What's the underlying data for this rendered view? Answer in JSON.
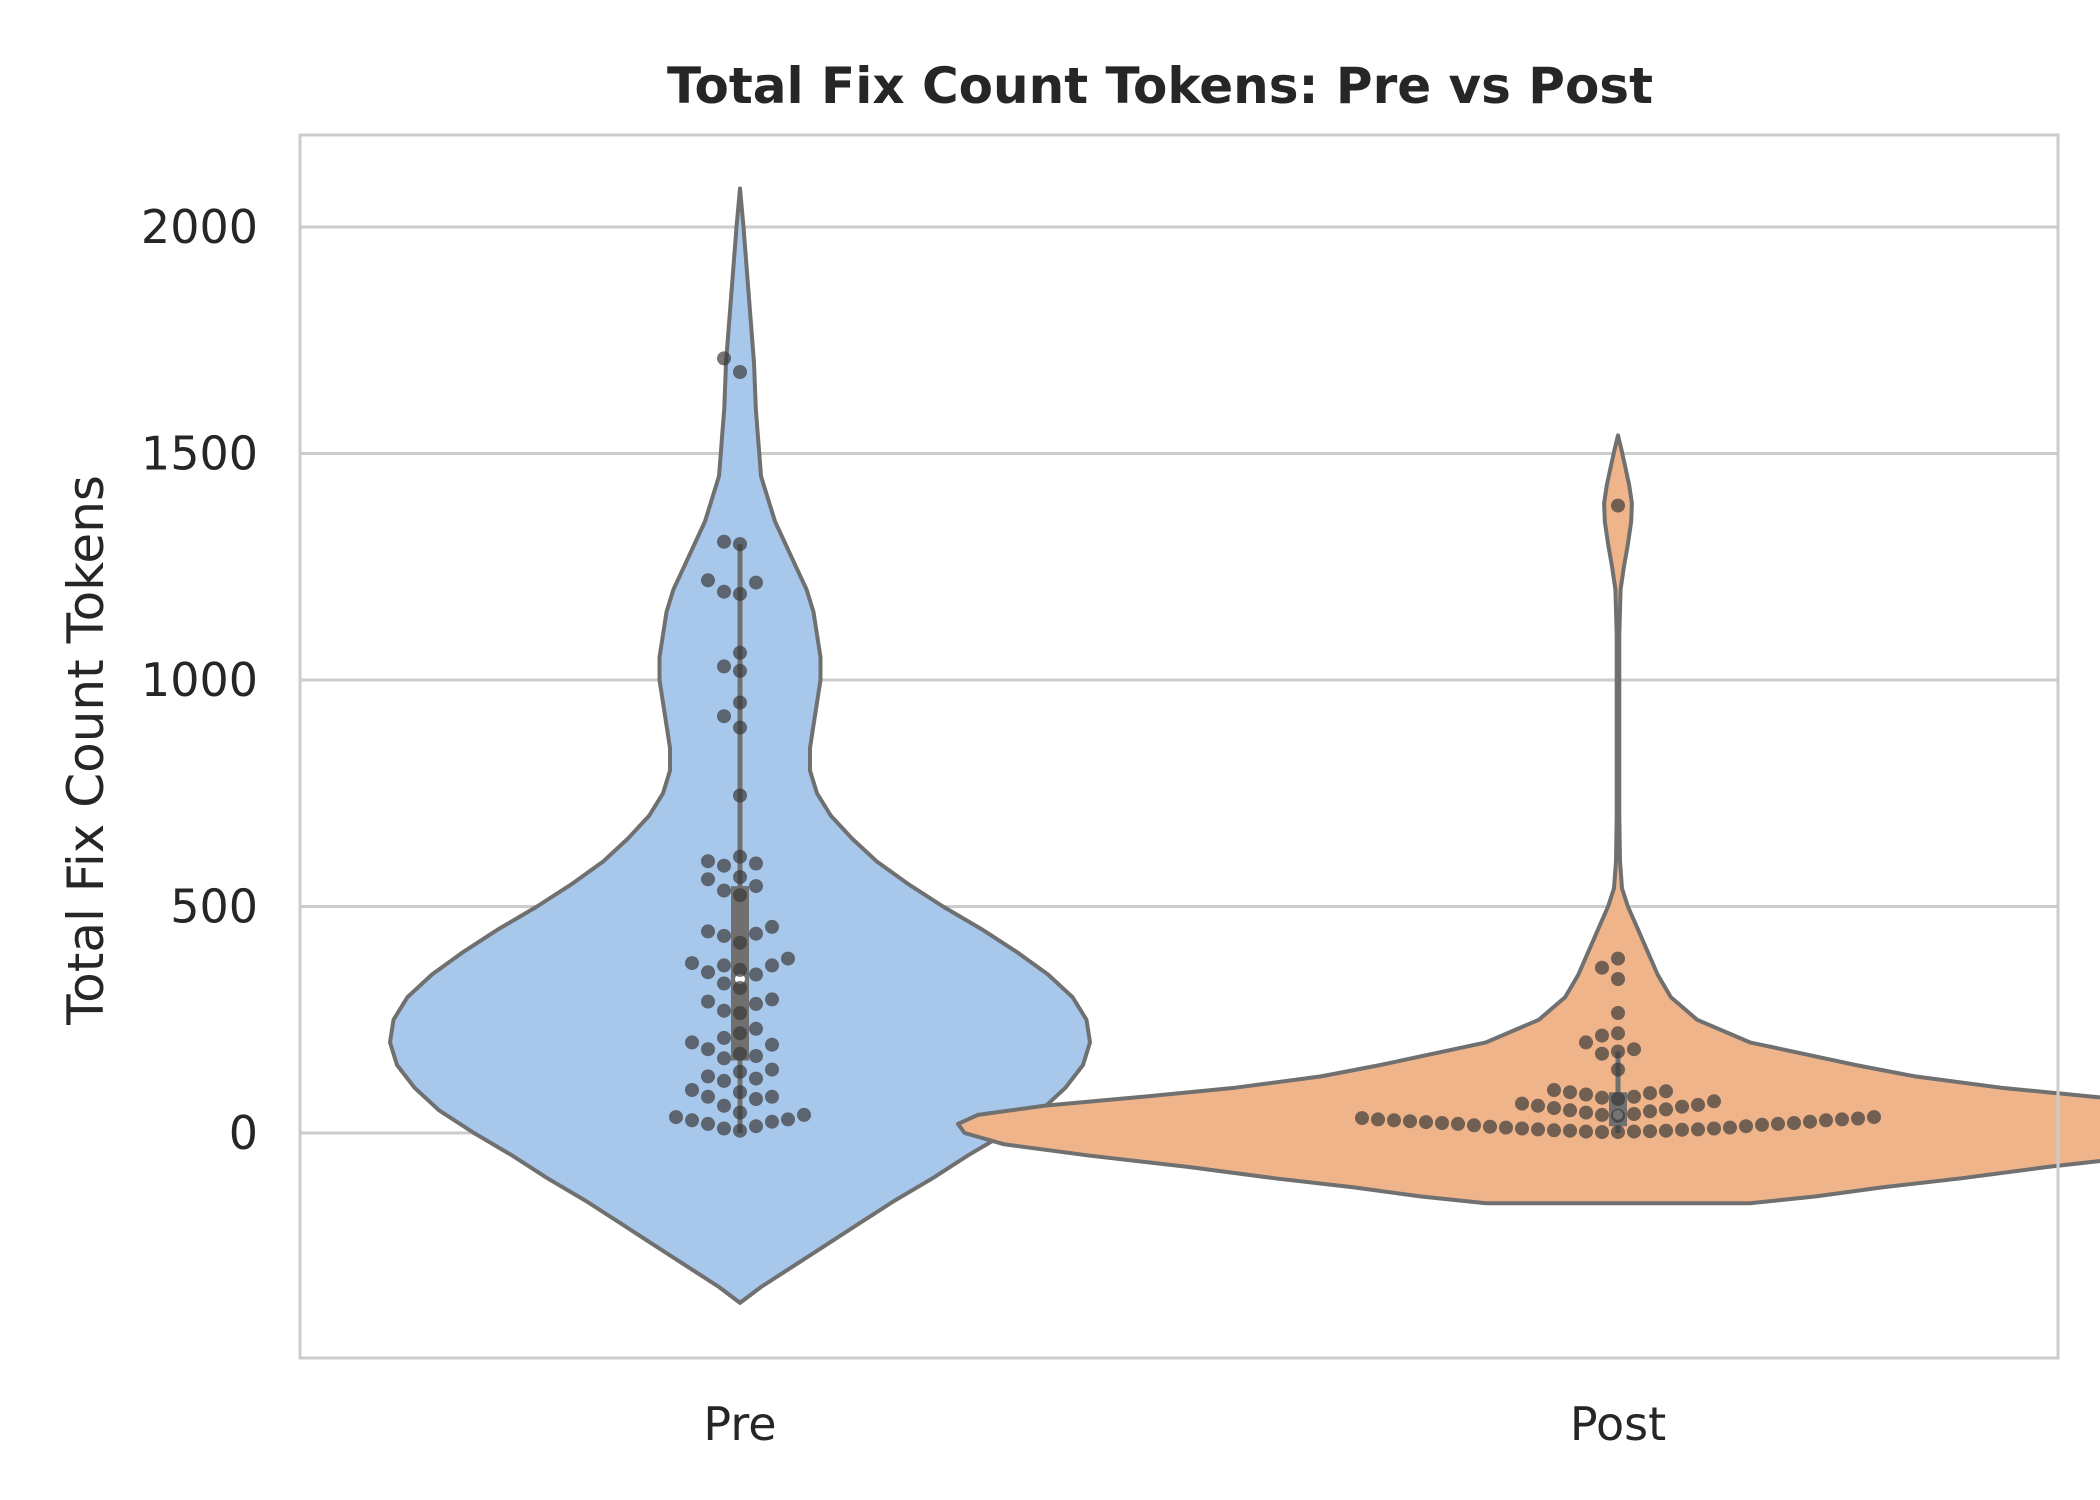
{
  "chart_data": {
    "type": "violin",
    "title": "Total Fix Count Tokens: Pre vs Post",
    "xlabel": "",
    "ylabel": "Total Fix Count Tokens",
    "ylim": [
      -500,
      2200
    ],
    "yticks": [
      0,
      500,
      1000,
      1500,
      2000
    ],
    "grid": "horizontal",
    "categories": [
      "Pre",
      "Post"
    ],
    "colors": {
      "Pre": "#a7c7eb",
      "Post": "#f0b48a",
      "outline": "#707070",
      "points": "#3a3a3a",
      "grid": "#cccccc",
      "frame": "#cccccc"
    },
    "series": [
      {
        "category": "Pre",
        "density_extent": [
          -375,
          2085
        ],
        "density_profile": [
          [
            -375,
            0.0
          ],
          [
            -340,
            0.06
          ],
          [
            -300,
            0.14
          ],
          [
            -250,
            0.24
          ],
          [
            -200,
            0.34
          ],
          [
            -150,
            0.44
          ],
          [
            -100,
            0.55
          ],
          [
            -50,
            0.65
          ],
          [
            0,
            0.76
          ],
          [
            50,
            0.86
          ],
          [
            100,
            0.93
          ],
          [
            150,
            0.98
          ],
          [
            200,
            1.0
          ],
          [
            250,
            0.99
          ],
          [
            300,
            0.95
          ],
          [
            350,
            0.88
          ],
          [
            400,
            0.79
          ],
          [
            450,
            0.69
          ],
          [
            500,
            0.58
          ],
          [
            550,
            0.48
          ],
          [
            600,
            0.39
          ],
          [
            650,
            0.32
          ],
          [
            700,
            0.26
          ],
          [
            750,
            0.22
          ],
          [
            800,
            0.2
          ],
          [
            850,
            0.2
          ],
          [
            900,
            0.21
          ],
          [
            950,
            0.22
          ],
          [
            1000,
            0.23
          ],
          [
            1050,
            0.23
          ],
          [
            1100,
            0.22
          ],
          [
            1150,
            0.21
          ],
          [
            1200,
            0.19
          ],
          [
            1250,
            0.16
          ],
          [
            1300,
            0.13
          ],
          [
            1350,
            0.1
          ],
          [
            1400,
            0.08
          ],
          [
            1450,
            0.06
          ],
          [
            1500,
            0.055
          ],
          [
            1550,
            0.05
          ],
          [
            1600,
            0.045
          ],
          [
            1700,
            0.04
          ],
          [
            1800,
            0.03
          ],
          [
            1900,
            0.02
          ],
          [
            2000,
            0.01
          ],
          [
            2085,
            0.0
          ]
        ],
        "quartiles": [
          160,
          340,
          545
        ],
        "whiskers": [
          0,
          1300
        ],
        "points": [
          1710,
          1680,
          1305,
          1300,
          1220,
          1215,
          1195,
          1190,
          1060,
          1030,
          1020,
          950,
          920,
          895,
          745,
          610,
          600,
          595,
          590,
          565,
          560,
          545,
          535,
          525,
          455,
          445,
          440,
          435,
          420,
          385,
          375,
          370,
          370,
          360,
          355,
          350,
          330,
          320,
          295,
          290,
          285,
          270,
          265,
          230,
          220,
          210,
          200,
          195,
          185,
          175,
          170,
          165,
          140,
          135,
          125,
          120,
          115,
          95,
          90,
          80,
          80,
          75,
          60,
          45,
          40,
          35,
          30,
          28,
          25,
          20,
          15,
          10,
          5
        ]
      },
      {
        "category": "Post",
        "density_extent": [
          -155,
          1540
        ],
        "density_profile": [
          [
            -155,
            0.2
          ],
          [
            -140,
            0.3
          ],
          [
            -120,
            0.4
          ],
          [
            -100,
            0.52
          ],
          [
            -75,
            0.65
          ],
          [
            -50,
            0.8
          ],
          [
            -25,
            0.93
          ],
          [
            0,
            0.99
          ],
          [
            20,
            1.0
          ],
          [
            40,
            0.97
          ],
          [
            60,
            0.87
          ],
          [
            80,
            0.72
          ],
          [
            100,
            0.58
          ],
          [
            125,
            0.45
          ],
          [
            150,
            0.36
          ],
          [
            175,
            0.28
          ],
          [
            200,
            0.2
          ],
          [
            250,
            0.12
          ],
          [
            300,
            0.08
          ],
          [
            350,
            0.06
          ],
          [
            400,
            0.045
          ],
          [
            450,
            0.03
          ],
          [
            500,
            0.015
          ],
          [
            540,
            0.006
          ],
          [
            600,
            0.003
          ],
          [
            700,
            0.002
          ],
          [
            800,
            0.002
          ],
          [
            900,
            0.002
          ],
          [
            1000,
            0.002
          ],
          [
            1100,
            0.002
          ],
          [
            1200,
            0.004
          ],
          [
            1250,
            0.009
          ],
          [
            1300,
            0.015
          ],
          [
            1350,
            0.02
          ],
          [
            1390,
            0.021
          ],
          [
            1430,
            0.017
          ],
          [
            1470,
            0.011
          ],
          [
            1510,
            0.005
          ],
          [
            1540,
            0.0
          ]
        ],
        "quartiles": [
          15,
          40,
          90
        ],
        "whiskers": [
          0,
          180
        ],
        "points": [
          1385,
          385,
          365,
          340,
          265,
          220,
          215,
          200,
          185,
          180,
          175,
          140,
          95,
          92,
          90,
          88,
          85,
          80,
          78,
          75,
          70,
          65,
          62,
          60,
          58,
          55,
          52,
          50,
          48,
          45,
          42,
          40,
          38,
          35,
          33,
          32,
          30,
          30,
          28,
          28,
          26,
          25,
          24,
          22,
          22,
          20,
          20,
          18,
          17,
          15,
          14,
          12,
          12,
          10,
          10,
          8,
          8,
          7,
          6,
          5,
          5,
          4,
          3,
          3,
          2,
          2
        ]
      }
    ]
  }
}
